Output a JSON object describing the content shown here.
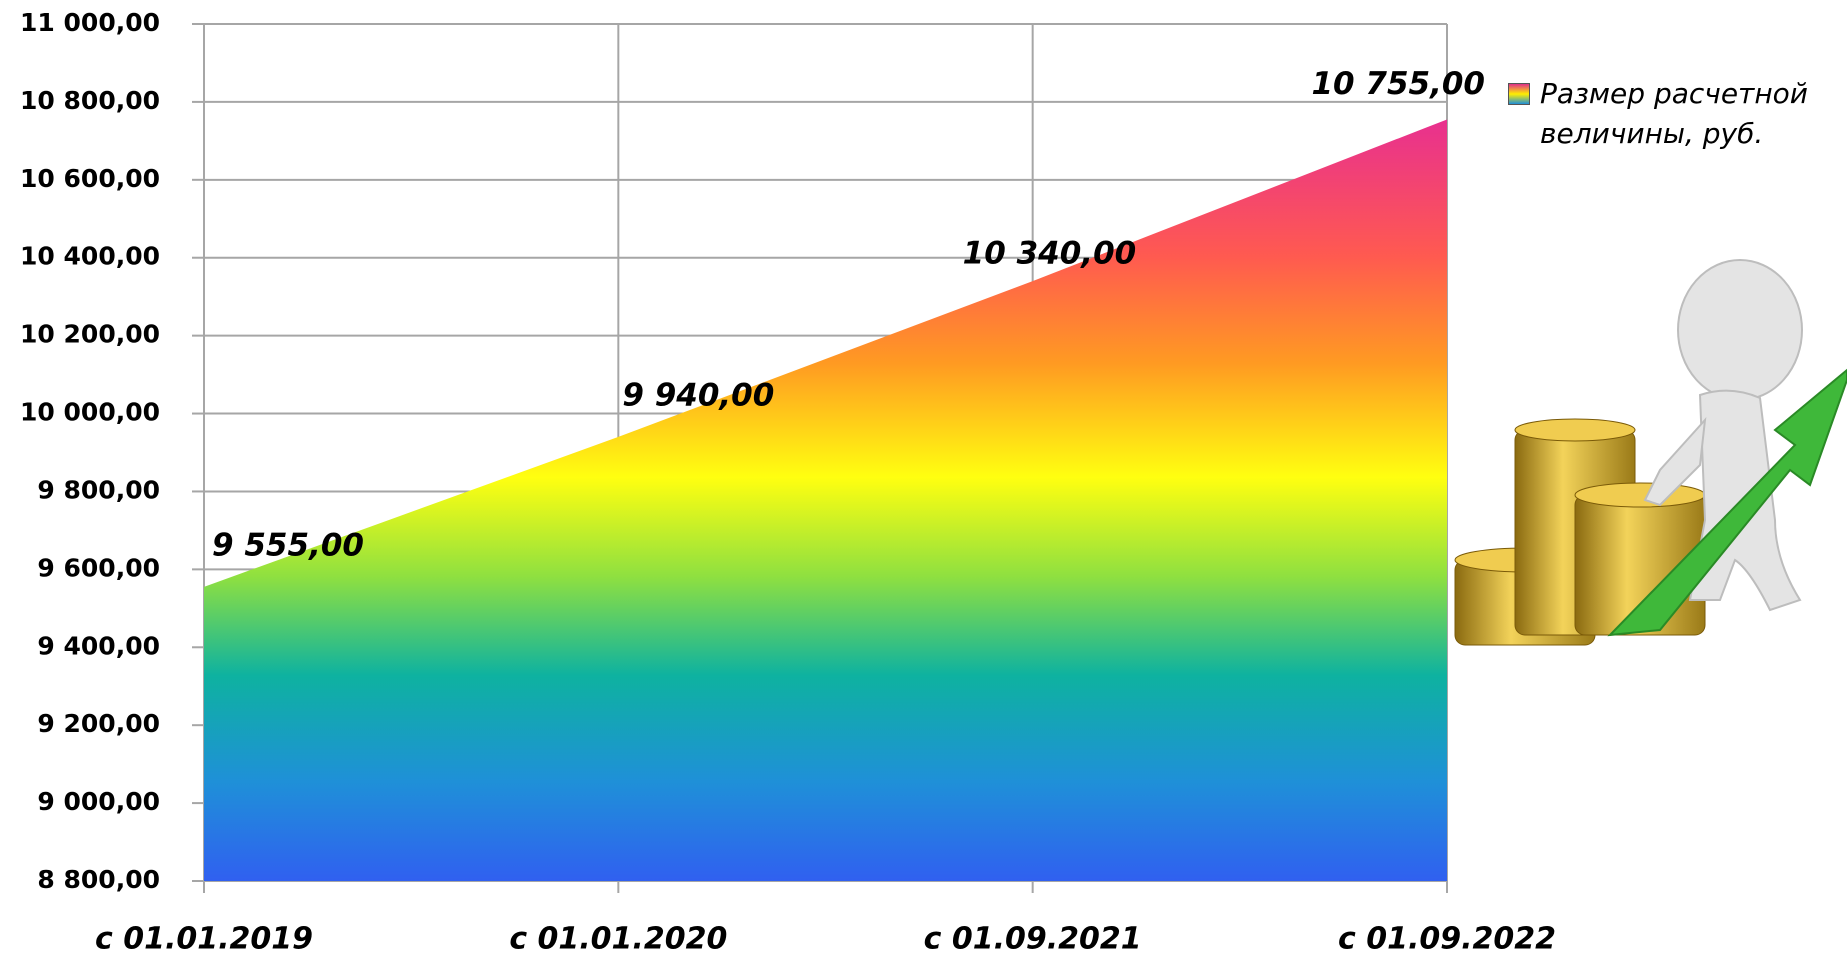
{
  "chart_data": {
    "type": "area",
    "categories": [
      "с 01.01.2019",
      "с 01.01.2020",
      "с 01.09.2021",
      "с 01.09.2022"
    ],
    "series": [
      {
        "name": "Размер расчетной величины, руб.",
        "color": "rainbow",
        "values": [
          9555,
          9940,
          10340,
          10755
        ],
        "value_labels": [
          "9 555,00",
          "9 940,00",
          "10 340,00",
          "10 755,00"
        ]
      }
    ],
    "ylim": [
      8800,
      11000
    ],
    "yticks": [
      {
        "value": 8800,
        "label": "8 800,00"
      },
      {
        "value": 9000,
        "label": "9 000,00"
      },
      {
        "value": 9200,
        "label": "9 200,00"
      },
      {
        "value": 9400,
        "label": "9 400,00"
      },
      {
        "value": 9600,
        "label": "9 600,00"
      },
      {
        "value": 9800,
        "label": "9 800,00"
      },
      {
        "value": 10000,
        "label": "10 000,00"
      },
      {
        "value": 10200,
        "label": "10 200,00"
      },
      {
        "value": 10400,
        "label": "10 400,00"
      },
      {
        "value": 10600,
        "label": "10 600,00"
      },
      {
        "value": 10800,
        "label": "10 800,00"
      },
      {
        "value": 11000,
        "label": "11 000,00"
      }
    ],
    "grid": true,
    "legend": "right"
  }
}
